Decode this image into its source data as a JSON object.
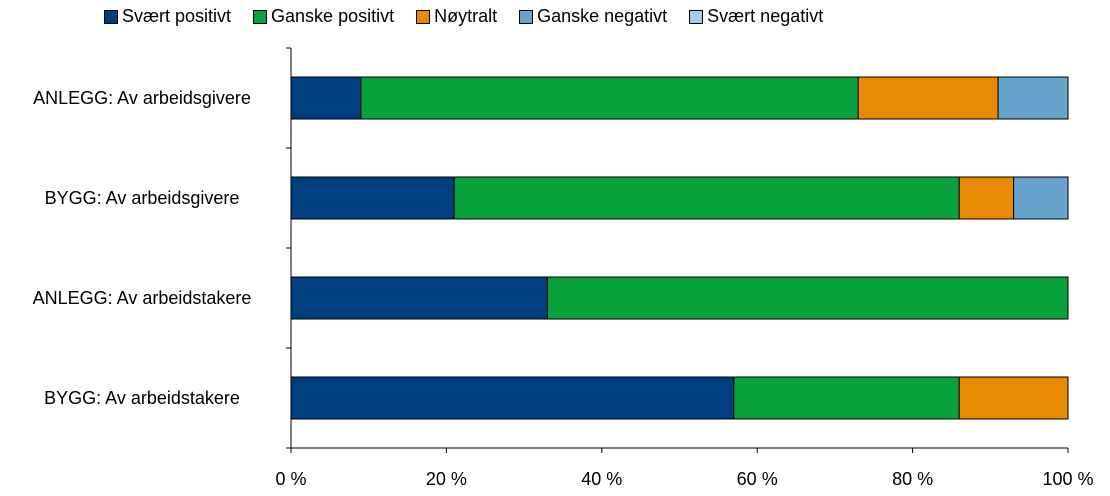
{
  "chart_data": {
    "type": "bar",
    "orientation": "horizontal",
    "stacked": true,
    "categories": [
      "ANLEGG: Av arbeidsgivere",
      "BYGG: Av arbeidsgivere",
      "ANLEGG: Av arbeidstakere",
      "BYGG: Av arbeidstakere"
    ],
    "series": [
      {
        "name": "Svært positivt",
        "color": "#003f7f",
        "values": [
          9,
          21,
          33,
          57
        ]
      },
      {
        "name": "Ganske positivt",
        "color": "#0aa23c",
        "values": [
          64,
          65,
          67,
          29
        ]
      },
      {
        "name": "Nøytralt",
        "color": "#ea8a00",
        "values": [
          18,
          7,
          0,
          14
        ]
      },
      {
        "name": "Ganske negativt",
        "color": "#66a3cd",
        "values": [
          9,
          7,
          0,
          0
        ]
      },
      {
        "name": "Svært negativt",
        "color": "#a8cbe6",
        "values": [
          0,
          0,
          0,
          0
        ]
      }
    ],
    "xlim": [
      0,
      100
    ],
    "xticks": [
      {
        "value": 0,
        "label": "0 %"
      },
      {
        "value": 20,
        "label": "20 %"
      },
      {
        "value": 40,
        "label": "40 %"
      },
      {
        "value": 60,
        "label": "60 %"
      },
      {
        "value": 80,
        "label": "80 %"
      },
      {
        "value": 100,
        "label": "100 %"
      }
    ],
    "legend": "top"
  }
}
